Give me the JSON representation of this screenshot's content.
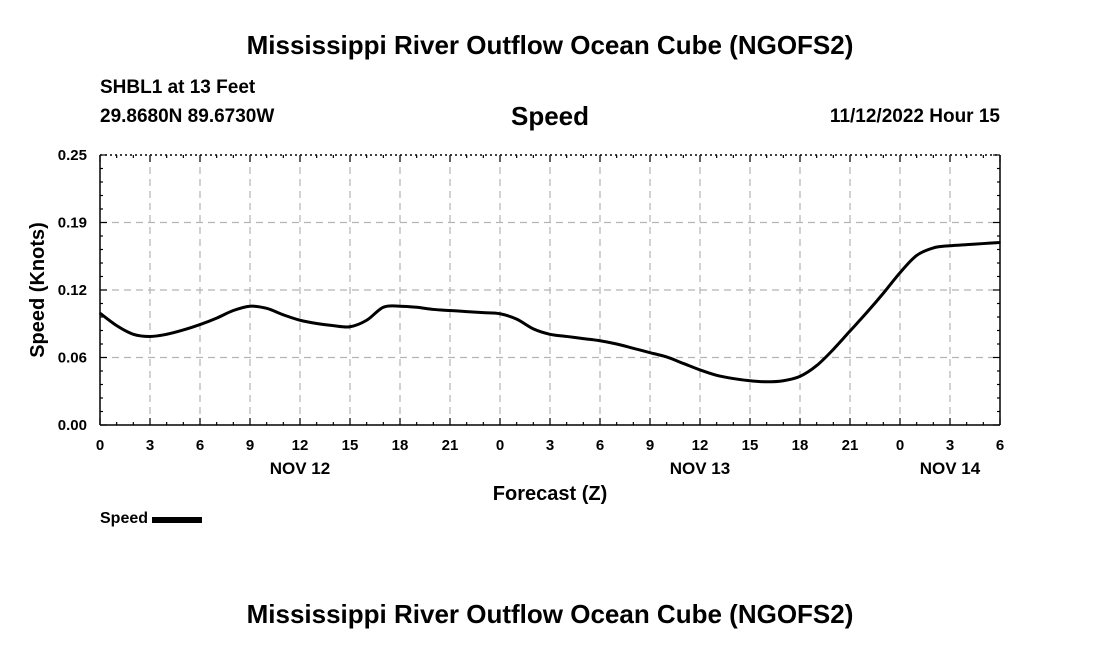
{
  "header": {
    "title": "Mississippi River Outflow Ocean Cube (NGOFS2)",
    "station": "SHBL1 at 13 Feet",
    "latlon": "29.8680N  89.6730W",
    "variable": "Speed",
    "timestamp": "11/12/2022 Hour 15"
  },
  "footer": {
    "title": "Mississippi River Outflow Ocean Cube (NGOFS2)"
  },
  "legend": {
    "label": "Speed"
  },
  "chart_data": {
    "type": "line",
    "title": "Speed",
    "xlabel": "Forecast (Z)",
    "ylabel": "Speed (Knots)",
    "xlim": [
      0,
      54
    ],
    "ylim": [
      0,
      0.25
    ],
    "x_ticks": [
      0,
      3,
      6,
      9,
      12,
      15,
      18,
      21,
      24,
      27,
      30,
      33,
      36,
      39,
      42,
      45,
      48,
      51,
      54
    ],
    "x_tick_labels": [
      "0",
      "3",
      "6",
      "9",
      "12",
      "15",
      "18",
      "21",
      "0",
      "3",
      "6",
      "9",
      "12",
      "15",
      "18",
      "21",
      "0",
      "3",
      "6"
    ],
    "y_ticks": [
      0.0,
      0.0625,
      0.125,
      0.1875,
      0.25
    ],
    "y_tick_labels": [
      "0.00",
      "0.06",
      "0.12",
      "0.19",
      "0.25"
    ],
    "date_labels": [
      {
        "x": 12,
        "label": "NOV 12"
      },
      {
        "x": 36,
        "label": "NOV 13"
      },
      {
        "x": 51,
        "label": "NOV 14"
      }
    ],
    "grid": true,
    "series": [
      {
        "name": "Speed",
        "color": "#000000",
        "x": [
          0,
          1,
          2,
          3,
          4,
          5,
          6,
          7,
          8,
          9,
          10,
          11,
          12,
          13,
          14,
          15,
          16,
          17,
          18,
          19,
          20,
          21,
          22,
          23,
          24,
          25,
          26,
          27,
          28,
          29,
          30,
          31,
          32,
          33,
          34,
          35,
          36,
          37,
          38,
          39,
          40,
          41,
          42,
          43,
          44,
          45,
          46,
          47,
          48,
          49,
          50,
          51,
          52,
          53,
          54
        ],
        "values": [
          0.1035,
          0.092,
          0.084,
          0.082,
          0.084,
          0.088,
          0.093,
          0.099,
          0.106,
          0.11,
          0.108,
          0.102,
          0.097,
          0.094,
          0.092,
          0.091,
          0.097,
          0.109,
          0.11,
          0.109,
          0.107,
          0.106,
          0.105,
          0.104,
          0.103,
          0.098,
          0.089,
          0.084,
          0.082,
          0.08,
          0.078,
          0.075,
          0.071,
          0.067,
          0.063,
          0.057,
          0.051,
          0.046,
          0.043,
          0.041,
          0.04,
          0.041,
          0.045,
          0.055,
          0.07,
          0.087,
          0.104,
          0.122,
          0.141,
          0.157,
          0.164,
          0.166,
          0.167,
          0.168,
          0.169
        ]
      }
    ]
  }
}
